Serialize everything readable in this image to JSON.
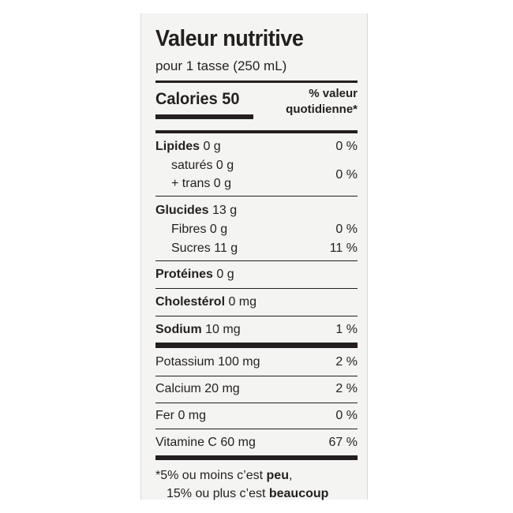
{
  "title": "Valeur nutritive",
  "serving": "pour 1 tasse (250 mL)",
  "calories": "Calories 50",
  "dv_header": [
    "% valeur",
    "quotidienne*"
  ],
  "rows": {
    "lipides": {
      "name": "Lipides",
      "amount": " 0 g",
      "dv": "0 %"
    },
    "satures": {
      "name": "saturés 0 g"
    },
    "trans": {
      "name": "+ trans 0 g",
      "dv": "0 %"
    },
    "glucides": {
      "name": "Glucides",
      "amount": " 13 g"
    },
    "fibres": {
      "name": "Fibres 0 g",
      "dv": "0 %"
    },
    "sucres": {
      "name": "Sucres 11 g",
      "dv": "11 %"
    },
    "proteines": {
      "name": "Protéines",
      "amount": " 0 g"
    },
    "cholesterol": {
      "name": "Cholestérol",
      "amount": " 0 mg"
    },
    "sodium": {
      "name": "Sodium",
      "amount": " 10 mg",
      "dv": "1 %"
    },
    "potassium": {
      "name": "Potassium 100 mg",
      "dv": "2 %"
    },
    "calcium": {
      "name": "Calcium 20 mg",
      "dv": "2 %"
    },
    "fer": {
      "name": "Fer 0 mg",
      "dv": "0 %"
    },
    "vitc": {
      "name": "Vitamine C 60 mg",
      "dv": "67 %"
    }
  },
  "footnote": {
    "line1_pre": "*5% ou moins c’est ",
    "line1_bold": "peu",
    "line1_post": ",",
    "line2_pre": "15% ou plus c’est ",
    "line2_bold": "beaucoup"
  }
}
